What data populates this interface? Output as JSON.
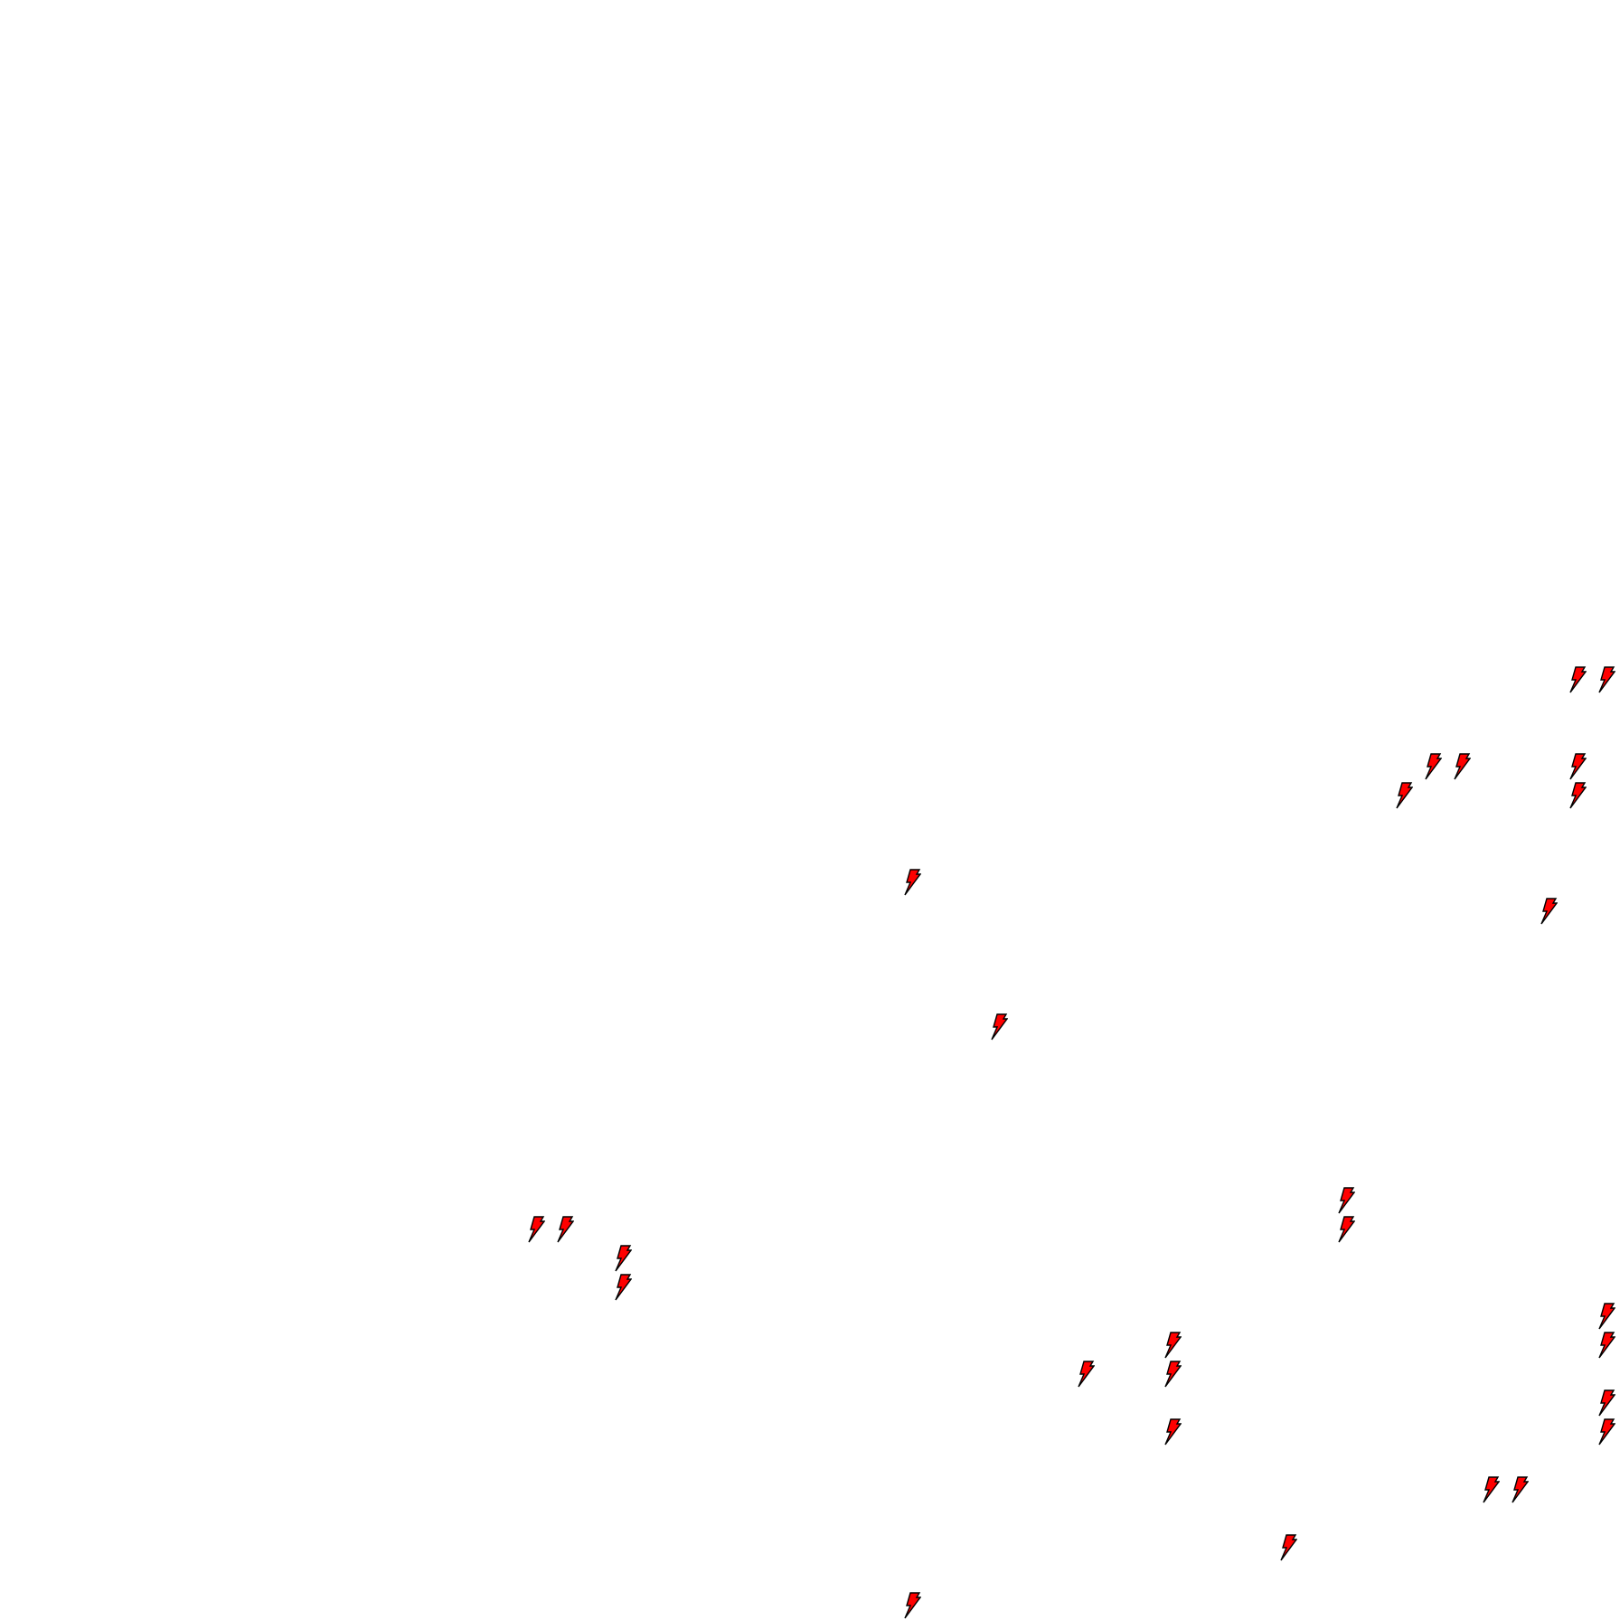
{
  "canvas": {
    "background": "#ffffff",
    "icon": "lightning-bolt-icon",
    "icon_fill": "#ff0000",
    "icon_stroke": "#000000"
  }
}
